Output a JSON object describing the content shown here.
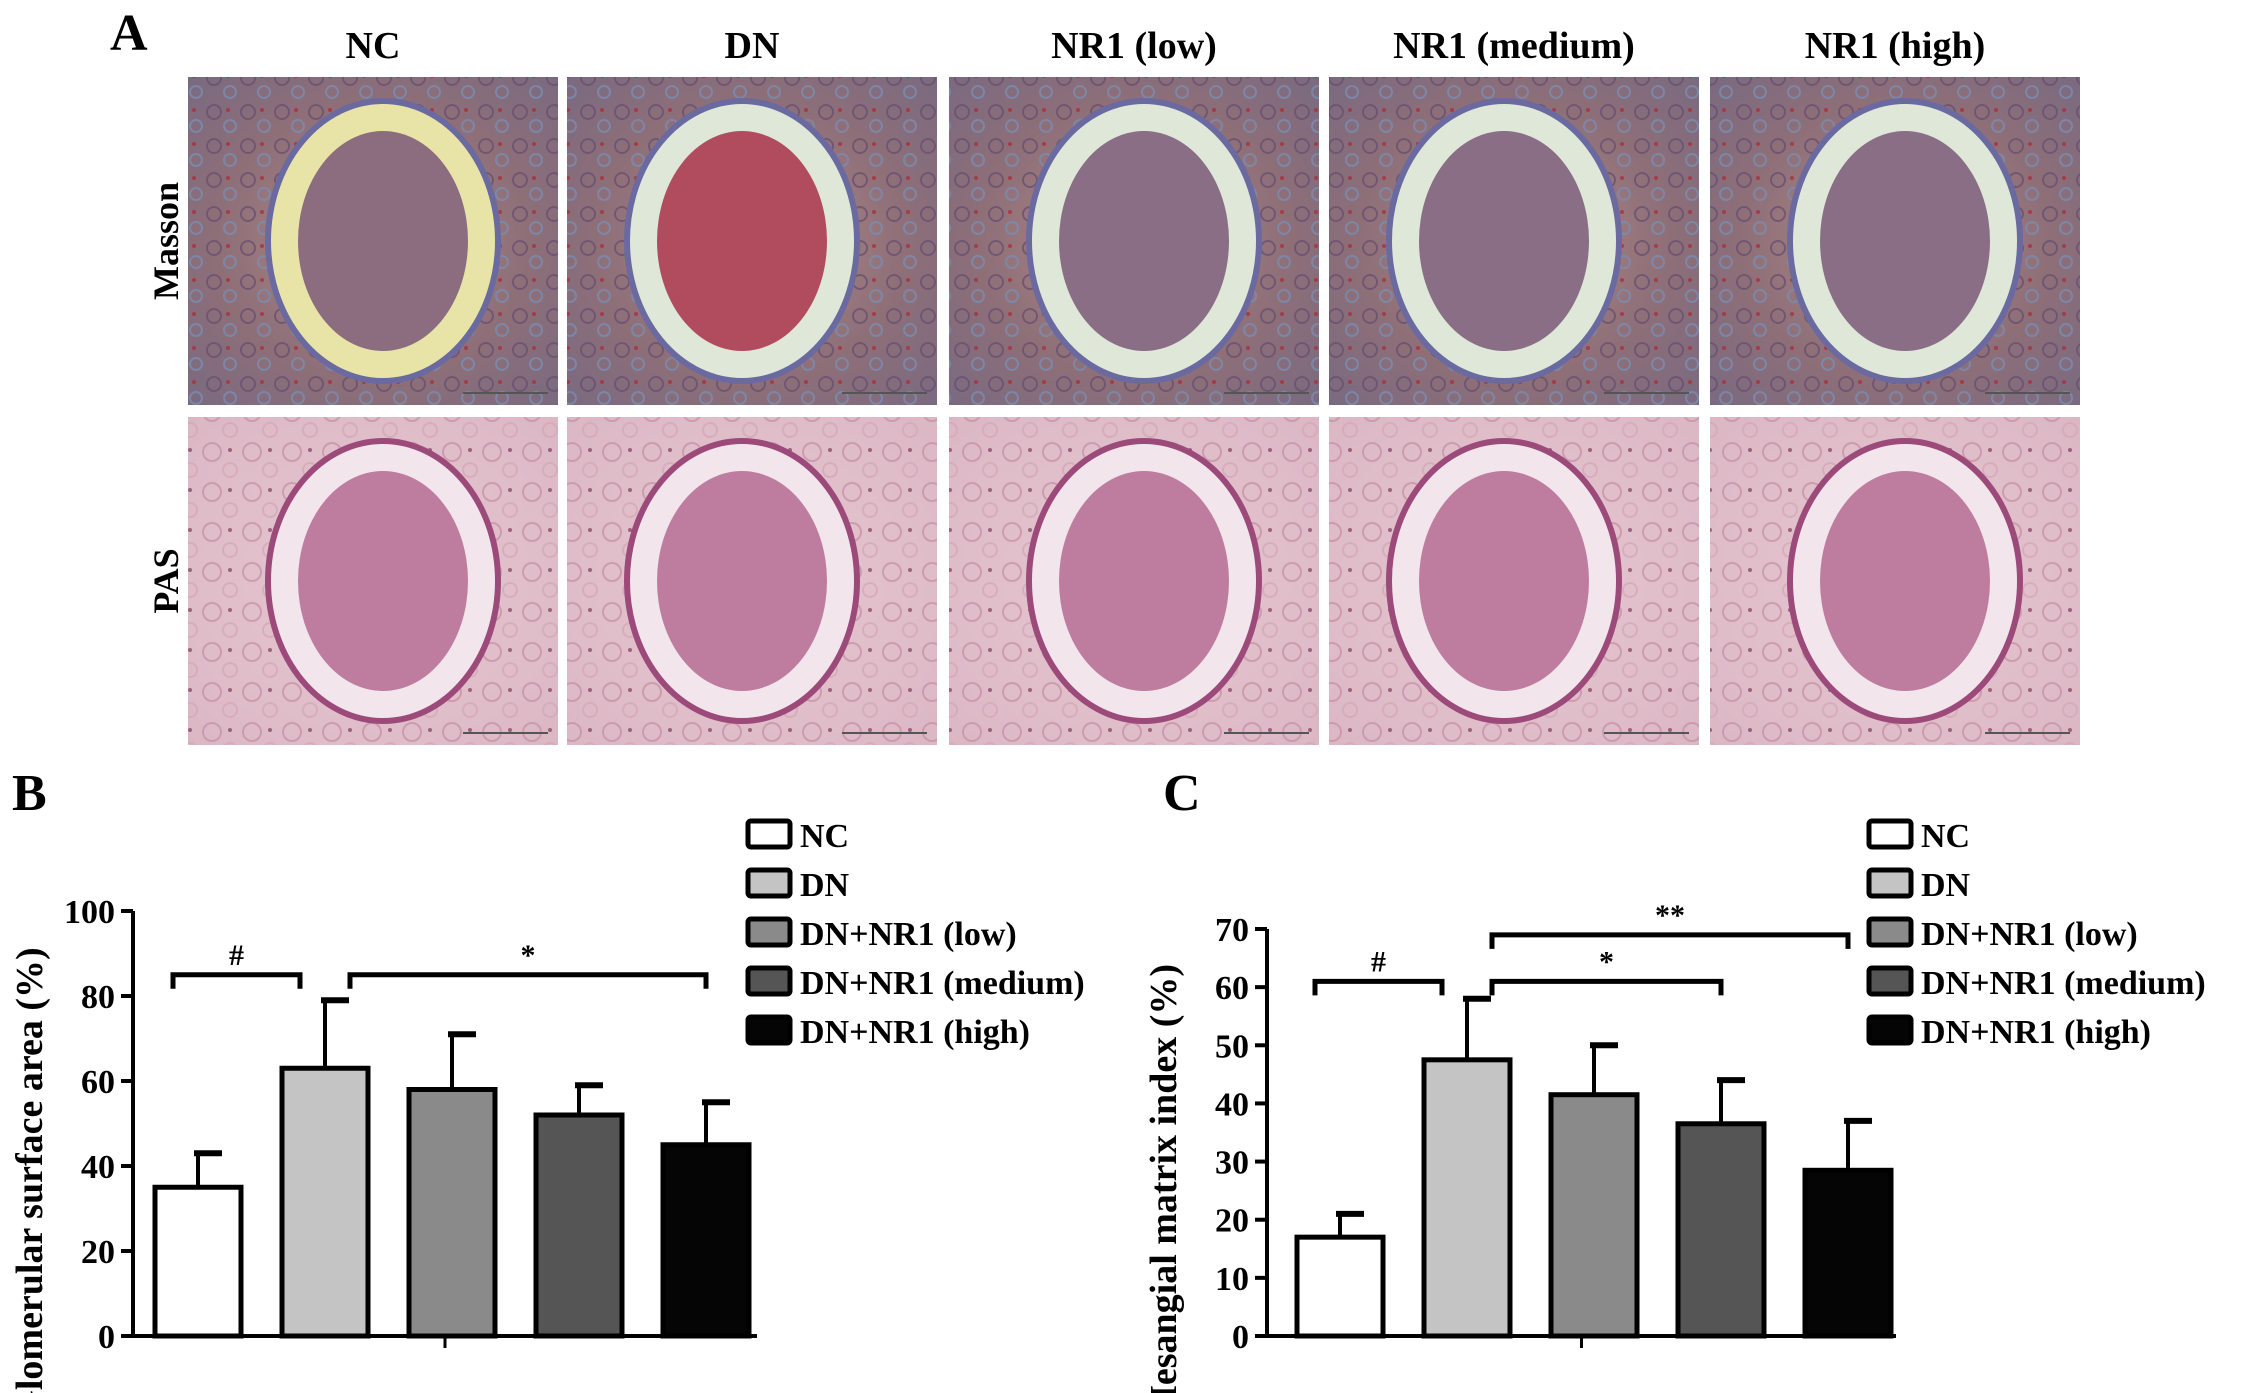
{
  "panel_a": {
    "label": "A",
    "columns": [
      "NC",
      "DN",
      "NR1 (low)",
      "NR1 (medium)",
      "NR1 (high)"
    ],
    "rows": [
      "Masson",
      "PAS"
    ]
  },
  "chart_data": [
    {
      "panel_label": "B",
      "type": "bar",
      "categories": [
        "NC",
        "DN",
        "DN+NR1 (low)",
        "DN+NR1 (medium)",
        "DN+NR1 (high)"
      ],
      "values": [
        35,
        63,
        58,
        52,
        45
      ],
      "errors": [
        8,
        16,
        13,
        7,
        10
      ],
      "colors": [
        "#ffffff",
        "#c4c4c4",
        "#8a8a8a",
        "#555555",
        "#050505"
      ],
      "ylabel": "Glomerular surface area (%)",
      "xlabel": "",
      "ylim": [
        0,
        100
      ],
      "yticks": [
        0,
        20,
        40,
        60,
        80,
        100
      ],
      "legend": "top-right",
      "significance": [
        {
          "from": 0,
          "to": 1,
          "label": "#",
          "y": 85
        },
        {
          "from": 1,
          "to": 4,
          "label": "*",
          "y": 85
        }
      ]
    },
    {
      "panel_label": "C",
      "type": "bar",
      "categories": [
        "NC",
        "DN",
        "DN+NR1 (low)",
        "DN+NR1 (medium)",
        "DN+NR1 (high)"
      ],
      "values": [
        17,
        47.5,
        41.5,
        36.5,
        28.5
      ],
      "errors": [
        4,
        10.5,
        8.5,
        7.5,
        8.5
      ],
      "colors": [
        "#ffffff",
        "#c4c4c4",
        "#8a8a8a",
        "#555555",
        "#050505"
      ],
      "ylabel": "Mesangial matrix index (%)",
      "xlabel": "",
      "ylim": [
        0,
        70
      ],
      "yticks": [
        0,
        10,
        20,
        30,
        40,
        50,
        60,
        70
      ],
      "legend": "top-right",
      "significance": [
        {
          "from": 0,
          "to": 1,
          "label": "#",
          "y": 61
        },
        {
          "from": 1,
          "to": 3,
          "label": "*",
          "y": 61
        },
        {
          "from": 1,
          "to": 4,
          "label": "**",
          "y": 69
        }
      ]
    }
  ]
}
